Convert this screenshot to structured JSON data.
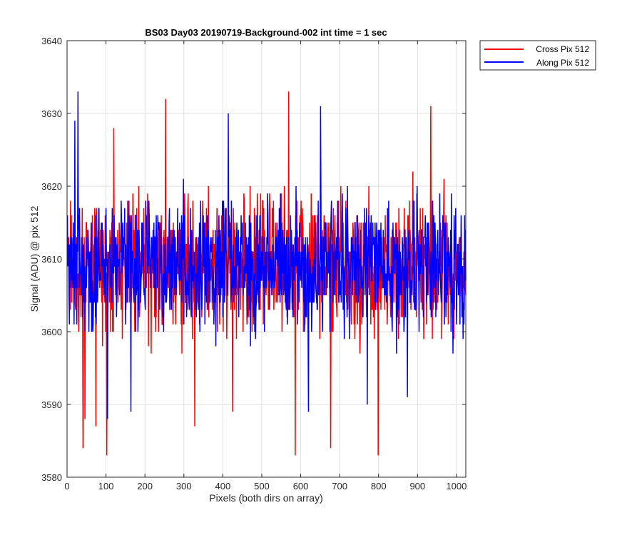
{
  "chart_data": {
    "type": "line",
    "title": "BS03 Day03 20190719-Background-002 int time = 1 sec",
    "xlabel": "Pixels (both dirs on array)",
    "ylabel": "Signal (ADU) @ pix 512",
    "xlim": [
      0,
      1024
    ],
    "ylim": [
      3580,
      3640
    ],
    "x_ticks": [
      0,
      100,
      200,
      300,
      400,
      500,
      600,
      700,
      800,
      900,
      1000
    ],
    "y_ticks": [
      3580,
      3590,
      3600,
      3610,
      3620,
      3630,
      3640
    ],
    "x_tick_labels": [
      "0",
      "100",
      "200",
      "300",
      "400",
      "500",
      "600",
      "700",
      "800",
      "900",
      "1000"
    ],
    "y_tick_labels": [
      "3580",
      "3590",
      "3600",
      "3610",
      "3620",
      "3630",
      "3640"
    ],
    "grid": true,
    "legend_position": "outside-top-right",
    "series": [
      {
        "name": "Cross Pix 512",
        "color": "#ff0000",
        "noise": {
          "mean": 3609,
          "typical_min": 3596,
          "typical_max": 3622,
          "points": 1024
        },
        "spikes": [
          {
            "x": 40,
            "y": 3584
          },
          {
            "x": 45,
            "y": 3588
          },
          {
            "x": 73,
            "y": 3587
          },
          {
            "x": 101,
            "y": 3583
          },
          {
            "x": 119,
            "y": 3628
          },
          {
            "x": 252,
            "y": 3632
          },
          {
            "x": 327,
            "y": 3587
          },
          {
            "x": 424,
            "y": 3589
          },
          {
            "x": 568,
            "y": 3633
          },
          {
            "x": 585,
            "y": 3583
          },
          {
            "x": 676,
            "y": 3584
          },
          {
            "x": 798,
            "y": 3583
          },
          {
            "x": 933,
            "y": 3631
          }
        ]
      },
      {
        "name": "Along Pix 512",
        "color": "#0000ff",
        "noise": {
          "mean": 3609,
          "typical_min": 3597,
          "typical_max": 3621,
          "points": 1024
        },
        "spikes": [
          {
            "x": 27,
            "y": 3633
          },
          {
            "x": 19,
            "y": 3629
          },
          {
            "x": 103,
            "y": 3588
          },
          {
            "x": 163,
            "y": 3589
          },
          {
            "x": 413,
            "y": 3630
          },
          {
            "x": 619,
            "y": 3589
          },
          {
            "x": 650,
            "y": 3631
          },
          {
            "x": 770,
            "y": 3590
          },
          {
            "x": 873,
            "y": 3591
          }
        ]
      }
    ]
  }
}
